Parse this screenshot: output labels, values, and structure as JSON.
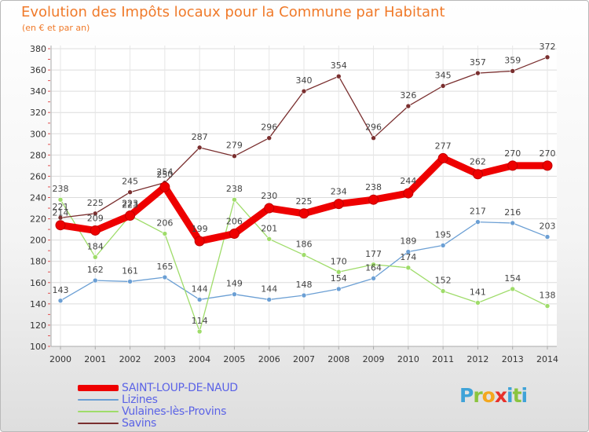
{
  "header": {
    "title": "Evolution des Impôts locaux pour la Commune par Habitant",
    "subtitle": "(en € et par an)"
  },
  "logo": {
    "letters": [
      "P",
      "r",
      "o",
      "x",
      "i",
      "t",
      "i"
    ],
    "colors": [
      "#3fa3d8",
      "#8ac43f",
      "#f4a71e",
      "#e8312b",
      "#3fa3d8",
      "#8ac43f",
      "#3fa3d8"
    ]
  },
  "chart_data": {
    "type": "line",
    "title": "Evolution des Impôts locaux pour la Commune par Habitant",
    "subtitle": "(en € et par an)",
    "x": [
      "2000",
      "2001",
      "2002",
      "2003",
      "2004",
      "2005",
      "2006",
      "2007",
      "2008",
      "2009",
      "2010",
      "2011",
      "2012",
      "2013",
      "2014"
    ],
    "ylim": [
      100,
      380
    ],
    "yticks": [
      100,
      120,
      140,
      160,
      180,
      200,
      220,
      240,
      260,
      280,
      300,
      320,
      340,
      360,
      380
    ],
    "grid": true,
    "legend_position": "bottom-left",
    "series": [
      {
        "name": "SAINT-LOUP-DE-NAUD",
        "color": "#ee0000",
        "values": [
          214,
          209,
          223,
          250,
          199,
          206,
          230,
          225,
          234,
          238,
          244,
          277,
          262,
          270,
          270
        ]
      },
      {
        "name": "Lizines",
        "color": "#6b9fd4",
        "values": [
          143,
          162,
          161,
          165,
          144,
          149,
          144,
          148,
          154,
          164,
          189,
          195,
          217,
          216,
          203
        ]
      },
      {
        "name": "Vulaines-lès-Provins",
        "color": "#9fdc6a",
        "values": [
          238,
          184,
          223,
          206,
          114,
          238,
          201,
          186,
          170,
          177,
          174,
          152,
          141,
          154,
          138
        ]
      },
      {
        "name": "Savins",
        "color": "#7a2f2f",
        "values": [
          221,
          225,
          245,
          254,
          287,
          279,
          296,
          340,
          354,
          296,
          326,
          345,
          357,
          359,
          372
        ]
      }
    ]
  }
}
